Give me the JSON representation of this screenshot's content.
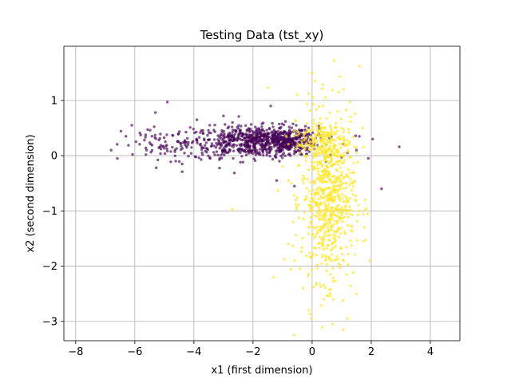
{
  "chart_data": {
    "type": "scatter",
    "title": "Testing Data (tst_xy)",
    "xlabel": "x1 (first dimension)",
    "ylabel": "x2 (second dimension)",
    "xlim": [
      -8.4,
      5.0
    ],
    "ylim": [
      -3.35,
      1.98
    ],
    "xticks": [
      -8,
      -6,
      -4,
      -2,
      0,
      2,
      4
    ],
    "yticks": [
      -3,
      -2,
      -1,
      0,
      1
    ],
    "grid": true,
    "marker_alpha": 0.65,
    "series": [
      {
        "color": "#440154",
        "clusters": [
          {
            "count": 600,
            "x_mean": -2.0,
            "x_sd": 1.1,
            "y_mean": 0.25,
            "y_sd": 0.14
          },
          {
            "count": 260,
            "x_mean": -1.0,
            "x_sd": 0.55,
            "y_mean": 0.27,
            "y_sd": 0.13
          },
          {
            "count": 80,
            "x_mean": -4.8,
            "x_sd": 0.8,
            "y_mean": 0.18,
            "y_sd": 0.18
          }
        ],
        "points": [
          [
            -6.8,
            0.1
          ],
          [
            -4.9,
            0.97
          ],
          [
            -6.1,
            0.55
          ],
          [
            2.95,
            0.16
          ],
          [
            2.35,
            -0.6
          ],
          [
            1.9,
            -0.05
          ],
          [
            -0.6,
            -0.55
          ],
          [
            -3.9,
            0.65
          ],
          [
            -1.4,
            0.9
          ],
          [
            -5.3,
            0.78
          ],
          [
            1.6,
            0.35
          ],
          [
            2.05,
            0.3
          ],
          [
            -6.3,
            0.35
          ],
          [
            -1.2,
            -0.45
          ],
          [
            -3.0,
            0.72
          ],
          [
            -0.9,
            0.62
          ],
          [
            1.2,
            0.05
          ],
          [
            -5.6,
            0.1
          ],
          [
            -4.4,
            -0.15
          ],
          [
            1.5,
            0.1
          ]
        ]
      },
      {
        "color": "#fde725",
        "clusters": [
          {
            "count": 700,
            "x_mean": 0.55,
            "x_sd": 0.45,
            "y_mean": -0.75,
            "y_sd": 0.75
          },
          {
            "count": 140,
            "x_mean": 0.3,
            "x_sd": 0.45,
            "y_mean": 0.25,
            "y_sd": 0.2
          }
        ],
        "points": [
          [
            -0.6,
            -3.25
          ],
          [
            1.05,
            -3.15
          ],
          [
            0.7,
            -3.05
          ],
          [
            0.75,
            1.72
          ],
          [
            1.6,
            1.62
          ],
          [
            0.0,
            1.5
          ],
          [
            0.1,
            1.35
          ],
          [
            -2.7,
            -0.97
          ],
          [
            -1.3,
            -2.2
          ],
          [
            -1.5,
            1.23
          ],
          [
            1.95,
            -1.9
          ],
          [
            1.5,
            -2.5
          ],
          [
            -0.1,
            -2.8
          ],
          [
            0.4,
            -2.6
          ],
          [
            -0.7,
            -0.5
          ],
          [
            -1.0,
            -0.2
          ],
          [
            1.8,
            -0.8
          ],
          [
            -0.5,
            1.1
          ],
          [
            0.9,
            1.15
          ],
          [
            1.3,
            0.7
          ],
          [
            -0.8,
            -1.6
          ],
          [
            -0.3,
            -2.4
          ],
          [
            1.7,
            0.5
          ],
          [
            1.2,
            -2.95
          ]
        ]
      }
    ]
  }
}
